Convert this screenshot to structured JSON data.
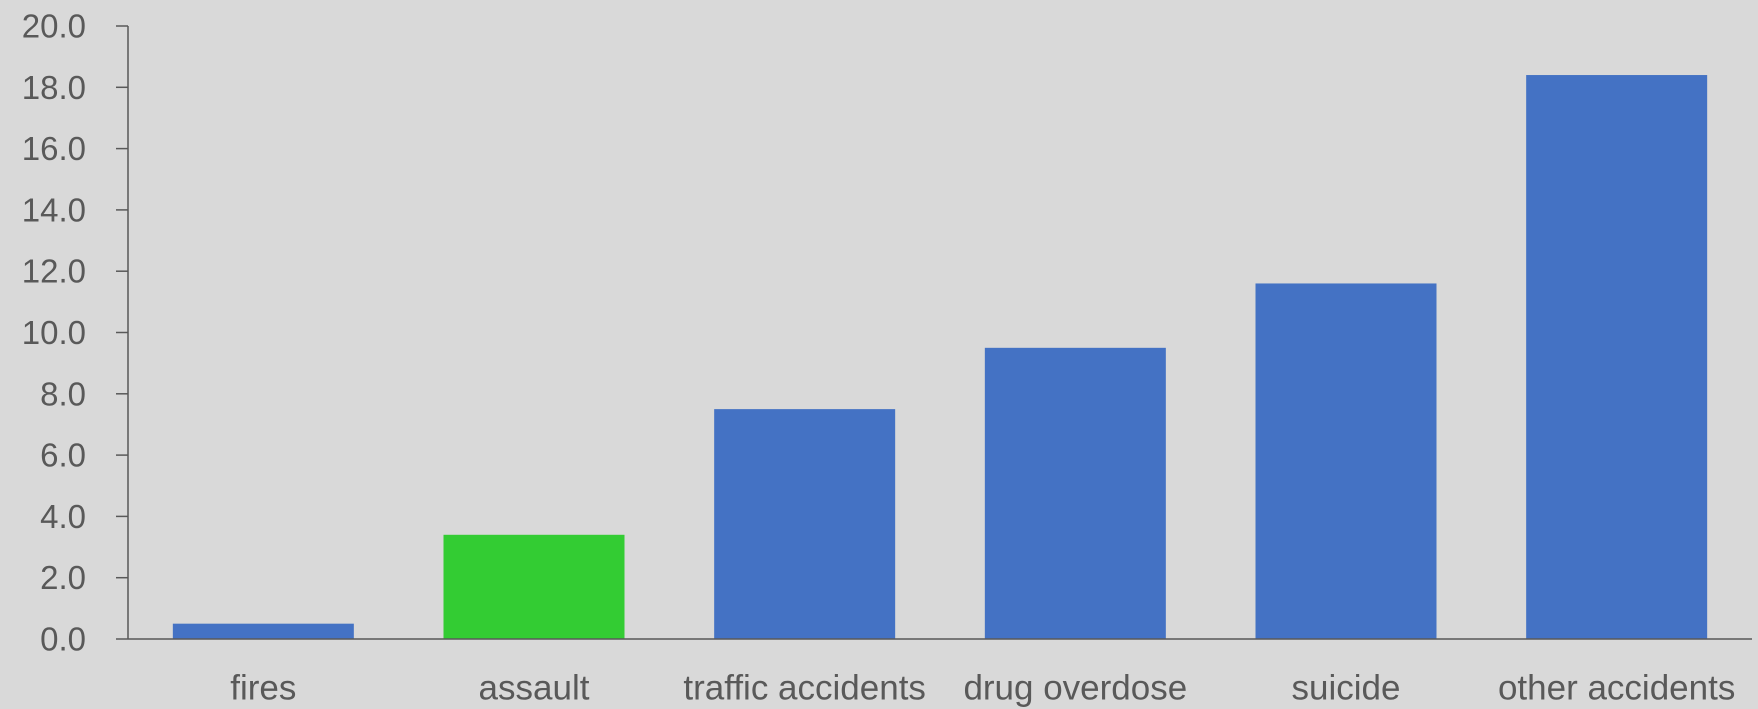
{
  "chart_data": {
    "type": "bar",
    "title": "",
    "xlabel": "",
    "ylabel": "",
    "categories": [
      "fires",
      "assault",
      "traffic accidents",
      "drug overdose",
      "suicide",
      "other accidents"
    ],
    "values": [
      0.5,
      3.4,
      7.5,
      9.5,
      11.6,
      18.4
    ],
    "ylim": [
      0,
      20
    ],
    "yticks": [
      "0.0",
      "2.0",
      "4.0",
      "6.0",
      "8.0",
      "10.0",
      "12.0",
      "14.0",
      "16.0",
      "18.0",
      "20.0"
    ],
    "grid": false,
    "legend": "none",
    "colors": {
      "default_bar": "#4472c4",
      "highlight_bar": "#33cc33",
      "highlight_category": "assault",
      "axis": "#595959",
      "text": "#595959",
      "background": "#d9d9d9"
    }
  }
}
